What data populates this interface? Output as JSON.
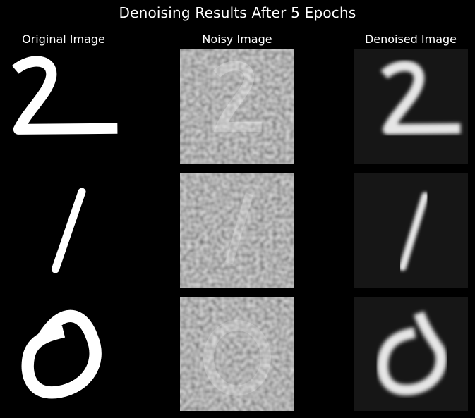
{
  "title": "Denoising Results After 5 Epochs",
  "columns": [
    "Original Image",
    "Noisy Image",
    "Denoised Image"
  ],
  "rows": [
    {
      "digit": "2"
    },
    {
      "digit": "1"
    },
    {
      "digit": "0"
    }
  ]
}
